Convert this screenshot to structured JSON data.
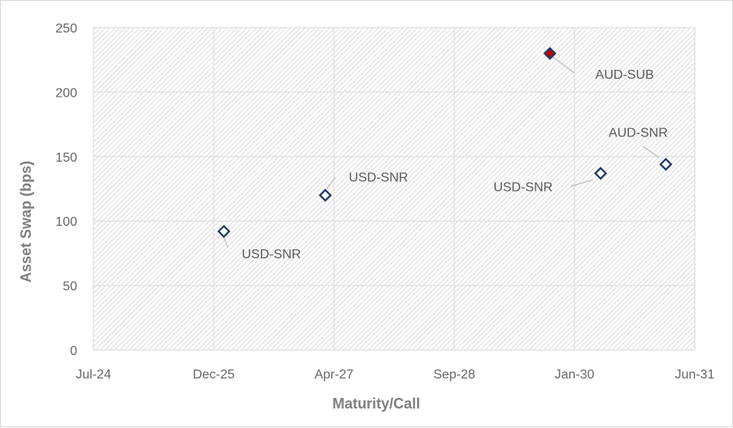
{
  "chart_data": {
    "type": "scatter",
    "title": "",
    "xlabel": "Maturity/Call",
    "ylabel": "Asset Swap (bps)",
    "x_ticks": [
      "Jul-24",
      "Dec-25",
      "Apr-27",
      "Sep-28",
      "Jan-30",
      "Jun-31"
    ],
    "xlim": [
      "2024-07",
      "2031-06"
    ],
    "ylim": [
      0,
      250
    ],
    "y_ticks": [
      "0",
      "50",
      "100",
      "150",
      "200",
      "250"
    ],
    "grid": true,
    "legend": "none",
    "colors": {
      "marker": "#1f3864",
      "marker_fill": "#ffffff",
      "aud_sub_fill": "#c00000",
      "grid": "#e3e3e3"
    },
    "points": [
      {
        "label": "USD-SNR",
        "x": "2026-01",
        "y": 92
      },
      {
        "label": "USD-SNR",
        "x": "2027-03",
        "y": 120
      },
      {
        "label": "AUD-SUB",
        "x": "2029-10",
        "y": 230
      },
      {
        "label": "USD-SNR",
        "x": "2030-05",
        "y": 137
      },
      {
        "label": "AUD-SNR",
        "x": "2031-02",
        "y": 144
      }
    ]
  }
}
